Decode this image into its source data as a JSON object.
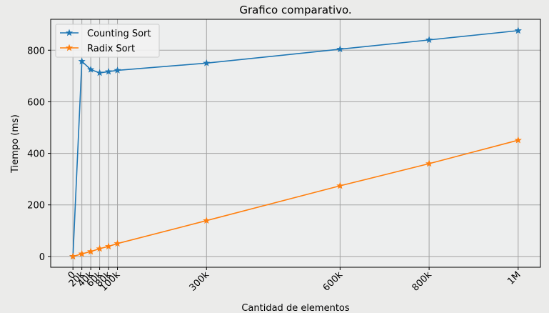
{
  "chart_data": {
    "type": "line",
    "title": "Grafico comparativo.",
    "xlabel": "Cantidad de elementos",
    "ylabel": "Tiempo (ms)",
    "x": [
      0,
      20000,
      40000,
      60000,
      80000,
      100000,
      300000,
      600000,
      800000,
      1000000
    ],
    "x_tick_values": [
      0,
      20000,
      40000,
      60000,
      80000,
      100000,
      300000,
      600000,
      800000,
      1000000
    ],
    "x_tick_labels": [
      "0",
      "20k",
      "40k",
      "60k",
      "80k",
      "100k",
      "300k",
      "600k",
      "800k",
      "1M"
    ],
    "y_tick_values": [
      0,
      200,
      400,
      600,
      800
    ],
    "y_tick_labels": [
      "0",
      "200",
      "400",
      "600",
      "800"
    ],
    "xlim": [
      -50000,
      1050000
    ],
    "ylim": [
      -42,
      920
    ],
    "grid": true,
    "legend_position": "top-left",
    "series": [
      {
        "name": "Counting Sort",
        "color": "#1f77b4",
        "marker": "star",
        "values": [
          0,
          757,
          725,
          712,
          717,
          722,
          750,
          804,
          840,
          876
        ]
      },
      {
        "name": "Radix Sort",
        "color": "#ff7f0e",
        "marker": "star",
        "values": [
          0,
          10,
          19,
          30,
          39,
          50,
          139,
          274,
          360,
          451
        ]
      }
    ]
  }
}
